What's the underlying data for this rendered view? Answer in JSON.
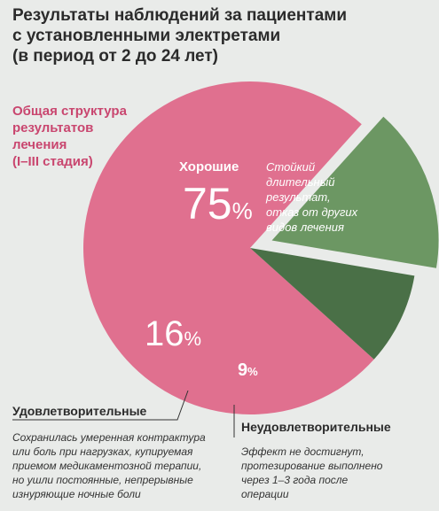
{
  "title_lines": [
    "Результаты наблюдений за пациентами",
    "с установленными электретами",
    "(в период от 2 до 24 лет)"
  ],
  "subtitle_lines": [
    "Общая структура",
    "результатов",
    "лечения",
    "(I–III стадия)"
  ],
  "colors": {
    "good": "#e0708f",
    "satisfactory": "#6c9763",
    "unsatisfactory": "#4a7047",
    "leader": "#333333"
  },
  "chart_data": {
    "type": "pie",
    "slices": [
      {
        "name": "Хорошие",
        "value": 75,
        "pct_label": "75",
        "pct_sign": "%",
        "description": [
          "Стойкий",
          "длительный",
          "результат,",
          "отказ от других",
          "видов лечения"
        ]
      },
      {
        "name": "Удовлетворительные",
        "value": 16,
        "pct_label": "16",
        "pct_sign": "%",
        "description": [
          "Сохранилась умеренная контрактура",
          "или боль при нагрузках, купируемая",
          "приемом медикаментозной терапии,",
          "но ушли постоянные, непрерывные",
          "изнуряющие ночные боли"
        ]
      },
      {
        "name": "Неудовлетворительные",
        "value": 9,
        "pct_label": "9",
        "pct_sign": "%",
        "description": [
          "Эффект не достигнут,",
          "протезирование выполнено",
          "через 1–3 года после",
          "операции"
        ]
      }
    ]
  }
}
